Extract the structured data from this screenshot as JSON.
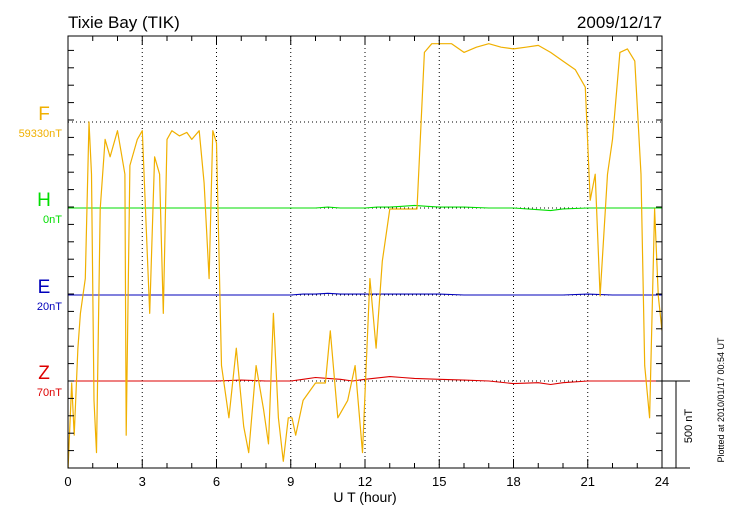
{
  "chart_data": {
    "type": "line",
    "title": "Tixie Bay (TIK)",
    "date": "2009/12/17",
    "xlabel": "U T (hour)",
    "xlim": [
      0,
      24
    ],
    "x_ticks": [
      "0",
      "3",
      "6",
      "9",
      "12",
      "15",
      "18",
      "21",
      "24"
    ],
    "plotted_note": "Plotted at 2010/01/17 00:54 UT",
    "scale_bar": {
      "label": "500 nT",
      "value_nT": 500
    },
    "channels": [
      {
        "name": "F",
        "baseline": "59330nT",
        "color": "#f0b000"
      },
      {
        "name": "H",
        "baseline": "0nT",
        "color": "#00dd00"
      },
      {
        "name": "E",
        "baseline": "20nT",
        "color": "#0000bb"
      },
      {
        "name": "Z",
        "baseline": "70nT",
        "color": "#dd0000"
      }
    ],
    "series": [
      {
        "name": "H",
        "offset_nT": 0,
        "x": [
          0,
          1,
          2,
          3,
          4,
          5,
          6,
          7,
          8,
          9,
          10,
          10.5,
          11,
          12,
          12.5,
          13,
          13.5,
          14,
          14.5,
          15,
          16,
          17,
          18,
          19,
          19.5,
          20,
          21,
          22,
          23,
          24
        ],
        "y": [
          0,
          0,
          0,
          0,
          0,
          0,
          0,
          0,
          0,
          0,
          0,
          5,
          0,
          0,
          5,
          5,
          10,
          15,
          10,
          5,
          5,
          0,
          0,
          -10,
          -15,
          -5,
          0,
          0,
          0,
          0
        ]
      },
      {
        "name": "E",
        "offset_nT": 0,
        "x": [
          0,
          1,
          2,
          3,
          4,
          5,
          6,
          7,
          8,
          9,
          9.5,
          10,
          10.5,
          11,
          12,
          13,
          14,
          15,
          16,
          17,
          18,
          19,
          20,
          21,
          22,
          23,
          24
        ],
        "y": [
          0,
          0,
          0,
          0,
          0,
          0,
          0,
          0,
          0,
          0,
          5,
          5,
          10,
          5,
          5,
          5,
          5,
          5,
          0,
          0,
          0,
          0,
          0,
          5,
          0,
          0,
          0
        ]
      },
      {
        "name": "Z",
        "offset_nT": 0,
        "x": [
          0,
          1,
          2,
          3,
          4,
          5,
          6,
          7,
          8,
          9,
          9.5,
          10,
          10.5,
          11,
          11.5,
          12,
          13,
          13.5,
          14,
          15,
          16,
          17,
          18,
          19,
          19.5,
          20,
          21,
          22,
          23,
          24
        ],
        "y": [
          0,
          0,
          0,
          0,
          0,
          0,
          0,
          5,
          0,
          0,
          10,
          20,
          15,
          10,
          0,
          10,
          25,
          20,
          15,
          10,
          5,
          0,
          -15,
          -10,
          -20,
          -10,
          0,
          0,
          0,
          0
        ]
      },
      {
        "name": "F",
        "offset_nT": 0,
        "x": [
          0,
          0.15,
          0.25,
          0.4,
          0.5,
          0.7,
          0.85,
          0.95,
          1.05,
          1.15,
          1.3,
          1.5,
          1.7,
          2.0,
          2.3,
          2.35,
          2.5,
          2.8,
          3.0,
          3.3,
          3.5,
          3.7,
          3.85,
          4.0,
          4.2,
          4.5,
          4.8,
          5.0,
          5.3,
          5.5,
          5.7,
          5.85,
          6.0,
          6.2,
          6.35,
          6.5,
          6.8,
          7.1,
          7.3,
          7.6,
          7.9,
          8.1,
          8.3,
          8.5,
          8.7,
          8.9,
          9.05,
          9.2,
          9.5,
          10.0,
          10.4,
          10.6,
          10.9,
          11.3,
          11.6,
          11.9,
          12.2,
          12.45,
          12.7,
          12.9,
          13.0,
          13.3,
          13.6,
          13.9,
          14.1,
          14.4,
          14.7,
          15.0,
          15.5,
          16.0,
          16.5,
          17.0,
          17.5,
          18.0,
          18.5,
          19.0,
          19.5,
          20.0,
          20.5,
          20.9,
          21.1,
          21.3,
          21.5,
          21.8,
          22.0,
          22.3,
          22.6,
          22.9,
          23.15,
          23.3,
          23.5,
          23.7,
          23.85,
          24.0
        ],
        "y": [
          -2000,
          -1500,
          -1800,
          -1300,
          -1100,
          -900,
          0,
          -300,
          -1600,
          -1900,
          -500,
          -100,
          -200,
          -50,
          -300,
          -1800,
          -250,
          -100,
          -50,
          -1100,
          -200,
          -300,
          -1100,
          -100,
          -50,
          -80,
          -60,
          -100,
          -50,
          -350,
          -900,
          -50,
          -120,
          -1400,
          -1550,
          -1700,
          -1300,
          -1750,
          -1900,
          -1400,
          -1650,
          -1850,
          -1100,
          -1700,
          -1950,
          -1700,
          -1700,
          -1800,
          -1600,
          -1500,
          -1500,
          -1200,
          -1700,
          -1600,
          -1400,
          -1900,
          -900,
          -1300,
          -800,
          -600,
          -500,
          -500,
          -500,
          -500,
          -500,
          400,
          450,
          450,
          450,
          400,
          430,
          450,
          430,
          420,
          430,
          440,
          400,
          350,
          300,
          200,
          -450,
          -300,
          -1000,
          -300,
          -100,
          400,
          420,
          350,
          -300,
          -1400,
          -1700,
          -500,
          -1000,
          -1200
        ]
      }
    ]
  }
}
